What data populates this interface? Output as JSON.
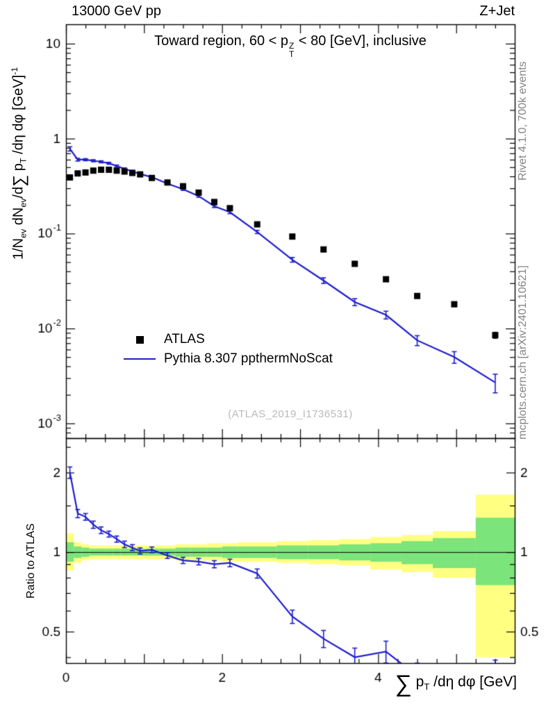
{
  "header": {
    "left": "13000 GeV pp",
    "right": "Z+Jet"
  },
  "notes": {
    "watermark": "(ATLAS_2019_I1736531)",
    "rivet": "Rivet 4.1.0,  700k events",
    "mcplots": "mcplots.cern.ch [arXiv:2401.10621]"
  },
  "legend": {
    "items": [
      {
        "label": "ATLAS",
        "marker": "square",
        "color": "#000000"
      },
      {
        "label": "Pythia 8.307 ppthermNoScat",
        "marker": "line",
        "color": "#1c1cce"
      }
    ]
  },
  "chart_data": {
    "type": "line",
    "title": "Toward region, 60 < pTZ < 80 [GeV], inclusive",
    "title_parts": {
      "pre": "Toward region, 60 < p",
      "sup": "Z",
      "sub": "T",
      "post": " < 80 [GeV], inclusive"
    },
    "x_title_parts": {
      "sum": "∑",
      "p": " p",
      "sub": "T",
      "rest": " /dη dφ [GeV]"
    },
    "y_title_parts": {
      "p1": "1/N",
      "s1": "ev",
      "p2": " dN",
      "s2": "ev",
      "p3": "/d",
      "sum": "∑",
      "p4": " p",
      "s3": "T",
      "p5": " /dη dφ  [GeV]",
      "sup": "-1"
    },
    "ratio_y_title": "Ratio to ATLAS",
    "x_range": [
      0,
      5.75
    ],
    "x_minor_step": 0.25,
    "x_ticks": [
      {
        "v": 0,
        "label": "0"
      },
      {
        "v": 2,
        "label": "2"
      },
      {
        "v": 4,
        "label": "4"
      }
    ],
    "x": [
      0.05,
      0.15,
      0.25,
      0.35,
      0.45,
      0.55,
      0.65,
      0.75,
      0.85,
      0.95,
      1.1,
      1.3,
      1.5,
      1.7,
      1.9,
      2.1,
      2.45,
      2.9,
      3.3,
      3.7,
      4.1,
      4.5,
      4.975,
      5.5
    ],
    "bins": [
      [
        0,
        0.1
      ],
      [
        0.1,
        0.2
      ],
      [
        0.2,
        0.3
      ],
      [
        0.3,
        0.4
      ],
      [
        0.4,
        0.5
      ],
      [
        0.5,
        0.6
      ],
      [
        0.6,
        0.7
      ],
      [
        0.7,
        0.8
      ],
      [
        0.8,
        0.9
      ],
      [
        0.9,
        1.0
      ],
      [
        1.0,
        1.2
      ],
      [
        1.2,
        1.4
      ],
      [
        1.4,
        1.6
      ],
      [
        1.6,
        1.8
      ],
      [
        1.8,
        2.0
      ],
      [
        2.0,
        2.2
      ],
      [
        2.2,
        2.7
      ],
      [
        2.7,
        3.1
      ],
      [
        3.1,
        3.5
      ],
      [
        3.5,
        3.9
      ],
      [
        3.9,
        4.3
      ],
      [
        4.3,
        4.7
      ],
      [
        4.7,
        5.25
      ],
      [
        5.25,
        5.75
      ]
    ],
    "main": {
      "y_scale": "log",
      "y_range": [
        0.0007,
        16
      ],
      "y_ticks": [
        {
          "v": 10,
          "base": "10",
          "exp": ""
        },
        {
          "v": 1,
          "base": "1",
          "exp": ""
        },
        {
          "v": 0.1,
          "base": "10",
          "exp": "-1"
        },
        {
          "v": 0.01,
          "base": "10",
          "exp": "-2"
        },
        {
          "v": 0.001,
          "base": "10",
          "exp": "-3"
        }
      ]
    },
    "series": [
      {
        "name": "ATLAS",
        "type": "marker",
        "color": "#000000",
        "values": [
          0.39,
          0.43,
          0.44,
          0.46,
          0.47,
          0.47,
          0.46,
          0.45,
          0.435,
          0.42,
          0.385,
          0.345,
          0.315,
          0.27,
          0.215,
          0.185,
          0.125,
          0.093,
          0.068,
          0.048,
          0.033,
          0.022,
          0.018,
          0.0085
        ],
        "errors": [
          0.008,
          0.008,
          0.008,
          0.008,
          0.008,
          0.008,
          0.008,
          0.008,
          0.008,
          0.008,
          0.007,
          0.006,
          0.006,
          0.005,
          0.004,
          0.004,
          0.003,
          0.0025,
          0.002,
          0.0015,
          0.0012,
          0.001,
          0.0009,
          0.0006
        ]
      },
      {
        "name": "Pythia 8.307 ppthermNoScat",
        "type": "line",
        "color": "#1c1cce",
        "values": [
          0.78,
          0.6,
          0.6,
          0.585,
          0.57,
          0.55,
          0.515,
          0.48,
          0.452,
          0.424,
          0.393,
          0.335,
          0.293,
          0.248,
          0.194,
          0.168,
          0.104,
          0.053,
          0.032,
          0.019,
          0.0139,
          0.0075,
          0.005,
          0.0027
        ],
        "errors": [
          0.04,
          0.02,
          0.015,
          0.015,
          0.014,
          0.013,
          0.012,
          0.012,
          0.011,
          0.011,
          0.009,
          0.008,
          0.008,
          0.007,
          0.006,
          0.006,
          0.004,
          0.003,
          0.0022,
          0.0016,
          0.0013,
          0.0009,
          0.0007,
          0.0006
        ]
      }
    ],
    "ratio": {
      "y_scale": "log",
      "y_range": [
        0.38,
        2.7
      ],
      "y_ticks": [
        {
          "v": 0.5,
          "label": "0.5"
        },
        {
          "v": 1,
          "label": "1"
        },
        {
          "v": 2,
          "label": "2"
        }
      ],
      "y_minor": [
        0.4,
        0.6,
        0.7,
        0.8,
        0.9,
        1.5,
        2.5
      ],
      "reference_line": 1,
      "series": {
        "name": "Pythia 8.307 ppthermNoScat / ATLAS",
        "color": "#1c1cce",
        "values": [
          2.0,
          1.4,
          1.36,
          1.27,
          1.21,
          1.17,
          1.12,
          1.07,
          1.04,
          1.01,
          1.02,
          0.97,
          0.93,
          0.92,
          0.9,
          0.91,
          0.83,
          0.57,
          0.47,
          0.4,
          0.42,
          0.34,
          0.28,
          0.32
        ],
        "errors": [
          0.1,
          0.05,
          0.04,
          0.04,
          0.035,
          0.03,
          0.03,
          0.03,
          0.027,
          0.027,
          0.025,
          0.024,
          0.025,
          0.026,
          0.028,
          0.03,
          0.033,
          0.033,
          0.035,
          0.033,
          0.04,
          0.04,
          0.045,
          0.07
        ]
      },
      "bands": {
        "total": {
          "color": "#ffff82",
          "lo": [
            0.85,
            0.91,
            0.93,
            0.94,
            0.94,
            0.94,
            0.94,
            0.94,
            0.94,
            0.94,
            0.94,
            0.94,
            0.93,
            0.93,
            0.93,
            0.92,
            0.92,
            0.91,
            0.9,
            0.89,
            0.86,
            0.84,
            0.8,
            0.4
          ],
          "hi": [
            1.18,
            1.09,
            1.07,
            1.06,
            1.06,
            1.06,
            1.06,
            1.06,
            1.06,
            1.06,
            1.06,
            1.06,
            1.07,
            1.07,
            1.08,
            1.08,
            1.09,
            1.1,
            1.11,
            1.12,
            1.14,
            1.16,
            1.2,
            1.65
          ]
        },
        "stat": {
          "color": "#7be47b",
          "lo": [
            0.92,
            0.95,
            0.96,
            0.97,
            0.97,
            0.97,
            0.97,
            0.97,
            0.97,
            0.97,
            0.97,
            0.97,
            0.96,
            0.96,
            0.96,
            0.95,
            0.95,
            0.94,
            0.94,
            0.93,
            0.92,
            0.9,
            0.87,
            0.75
          ],
          "hi": [
            1.09,
            1.05,
            1.04,
            1.03,
            1.03,
            1.03,
            1.03,
            1.03,
            1.03,
            1.03,
            1.03,
            1.03,
            1.04,
            1.04,
            1.04,
            1.05,
            1.05,
            1.06,
            1.06,
            1.07,
            1.08,
            1.1,
            1.13,
            1.35
          ]
        }
      }
    }
  }
}
